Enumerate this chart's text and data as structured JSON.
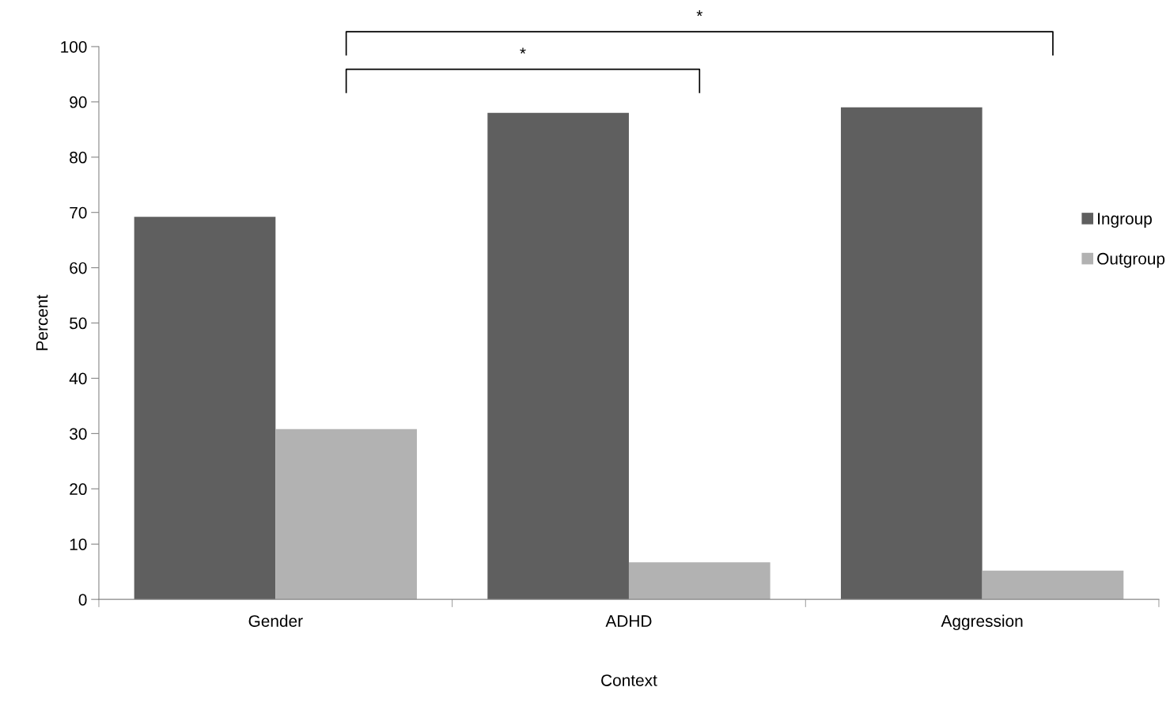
{
  "chart_data": {
    "type": "bar",
    "xlabel": "Context",
    "ylabel": "Percent",
    "categories": [
      "Gender",
      "ADHD",
      "Aggression"
    ],
    "series": [
      {
        "name": "Ingroup",
        "color": "#5f5f5f",
        "values": [
          69.2,
          88.0,
          89.0
        ]
      },
      {
        "name": "Outgroup",
        "color": "#b2b2b2",
        "values": [
          30.8,
          6.7,
          5.2
        ]
      }
    ],
    "ylim": [
      0,
      100
    ],
    "yticks": [
      0,
      10,
      20,
      30,
      40,
      50,
      60,
      70,
      80,
      90,
      100
    ],
    "annotations": [
      "*",
      "*"
    ],
    "grid": false,
    "legend": "right"
  }
}
